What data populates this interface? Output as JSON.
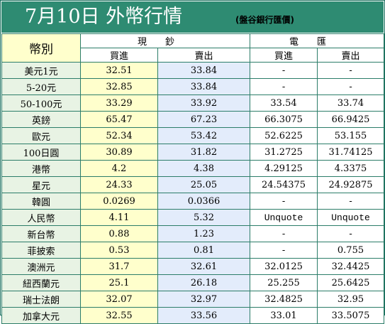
{
  "title": "7月10日 外幣行情",
  "source_note": "(盤谷銀行匯價)",
  "headers": {
    "currency": "幣別",
    "cash": "現鈔",
    "transfer": "電匯",
    "buy": "買進",
    "sell": "賣出"
  },
  "rows": [
    {
      "name": "美元1元",
      "cash_buy": "32.51",
      "cash_sell": "33.84",
      "tt_buy": "-",
      "tt_sell": "-"
    },
    {
      "name": "5-20元",
      "cash_buy": "32.85",
      "cash_sell": "33.84",
      "tt_buy": "-",
      "tt_sell": "-"
    },
    {
      "name": "50-100元",
      "cash_buy": "33.29",
      "cash_sell": "33.92",
      "tt_buy": "33.54",
      "tt_sell": "33.74"
    },
    {
      "name": "英鎊",
      "cash_buy": "65.47",
      "cash_sell": "67.23",
      "tt_buy": "66.3075",
      "tt_sell": "66.9425"
    },
    {
      "name": "歐元",
      "cash_buy": "52.34",
      "cash_sell": "53.42",
      "tt_buy": "52.6225",
      "tt_sell": "53.155"
    },
    {
      "name": "100日圓",
      "cash_buy": "30.89",
      "cash_sell": "31.82",
      "tt_buy": "31.2725",
      "tt_sell": "31.74125"
    },
    {
      "name": "港幣",
      "cash_buy": "4.2",
      "cash_sell": "4.38",
      "tt_buy": "4.29125",
      "tt_sell": "4.3375"
    },
    {
      "name": "星元",
      "cash_buy": "24.33",
      "cash_sell": "25.05",
      "tt_buy": "24.54375",
      "tt_sell": "24.92875"
    },
    {
      "name": "韓圓",
      "cash_buy": "0.0269",
      "cash_sell": "0.0366",
      "tt_buy": "-",
      "tt_sell": "-"
    },
    {
      "name": "人民幣",
      "cash_buy": "4.11",
      "cash_sell": "5.32",
      "tt_buy": "Unquote",
      "tt_sell": "Unquote"
    },
    {
      "name": "新台幣",
      "cash_buy": "0.88",
      "cash_sell": "1.23",
      "tt_buy": "-",
      "tt_sell": "-"
    },
    {
      "name": "菲披索",
      "cash_buy": "0.53",
      "cash_sell": "0.81",
      "tt_buy": "-",
      "tt_sell": "0.755"
    },
    {
      "name": "澳洲元",
      "cash_buy": "31.7",
      "cash_sell": "32.61",
      "tt_buy": "32.0125",
      "tt_sell": "32.4425"
    },
    {
      "name": "紐西蘭元",
      "cash_buy": "25.1",
      "cash_sell": "26.18",
      "tt_buy": "25.255",
      "tt_sell": "25.6425"
    },
    {
      "name": "瑞士法朗",
      "cash_buy": "32.07",
      "cash_sell": "32.97",
      "tt_buy": "32.4825",
      "tt_sell": "32.95"
    },
    {
      "name": "加拿大元",
      "cash_buy": "32.55",
      "cash_sell": "33.56",
      "tt_buy": "33.01",
      "tt_sell": "33.5075"
    }
  ],
  "colors": {
    "title_bar": "#2e8b72",
    "name_column": "#e8f3e4",
    "cash_buy_column": "#ffffcc",
    "cash_sell_column": "#e3ecfb",
    "border": "#2c7d69"
  }
}
